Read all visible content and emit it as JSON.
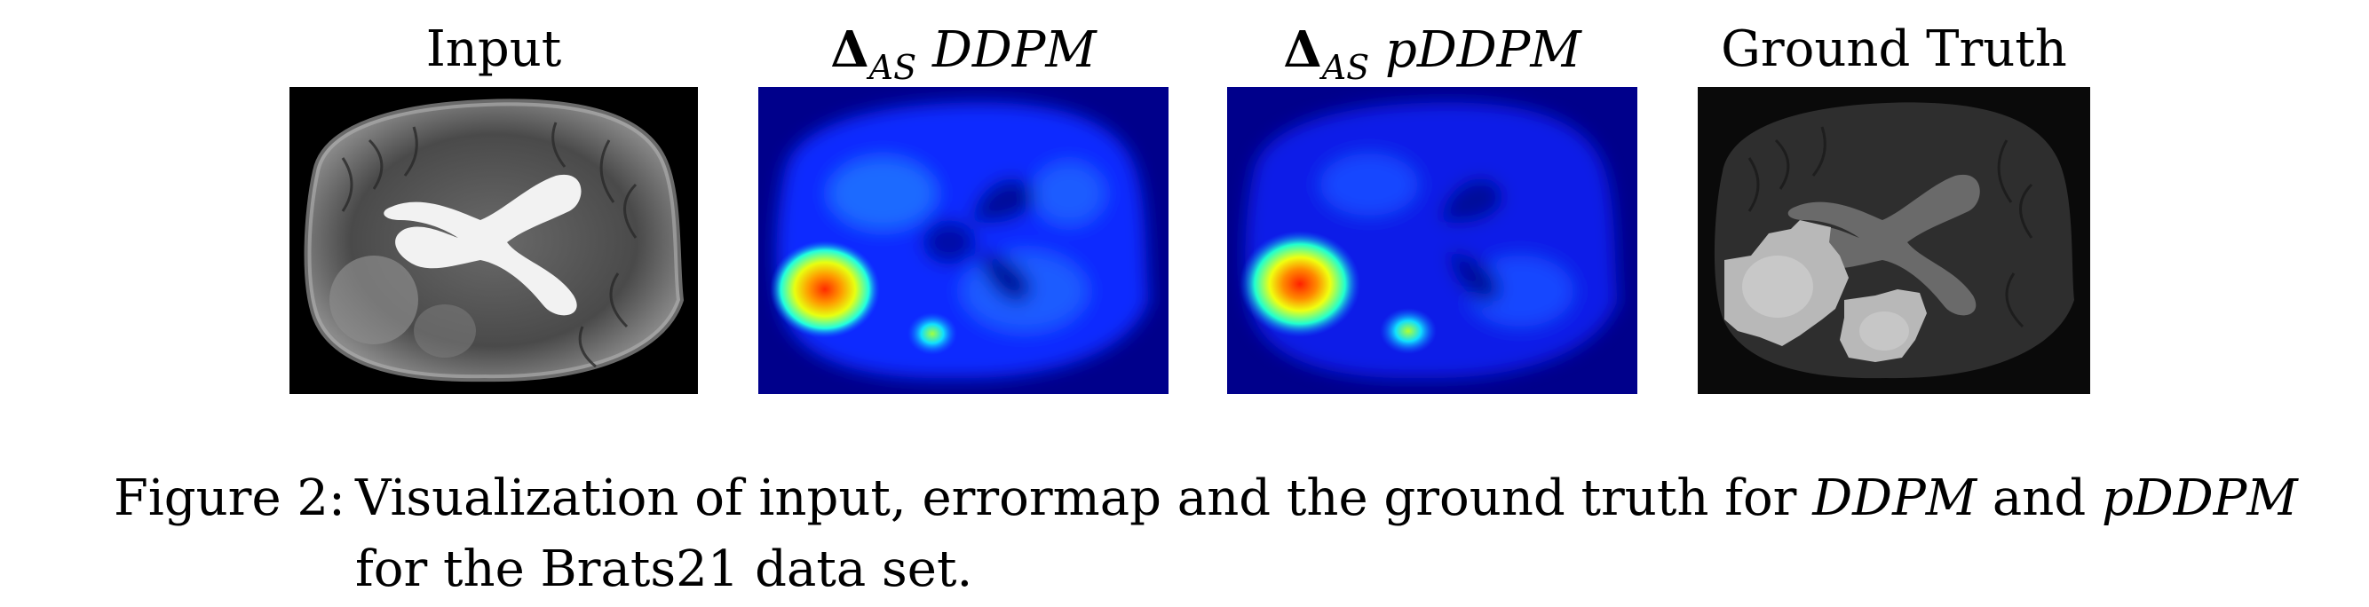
{
  "panels": [
    {
      "title": "Input",
      "kind": "mri"
    },
    {
      "delta": "Δ",
      "subscript": "AS",
      "model": "DDPM",
      "kind": "errormap",
      "variant": "ddpm"
    },
    {
      "delta": "Δ",
      "subscript": "AS",
      "model": "pDDPM",
      "kind": "errormap",
      "variant": "pddpm"
    },
    {
      "title": "Ground Truth",
      "kind": "groundtruth"
    }
  ],
  "caption": {
    "label": "Figure 2:",
    "text_1": "Visualization of input, errormap and the ground truth for",
    "model_1": "DDPM",
    "text_2": "and",
    "model_2": "pDDPM",
    "text_3": "for the Brats21 data set."
  },
  "colors": {
    "errormap_background": "#00008b",
    "errormap_low": "#0000ff",
    "errormap_high": "#ff3000",
    "mri_background": "#000000",
    "groundtruth_background": "#0a0a0a"
  }
}
